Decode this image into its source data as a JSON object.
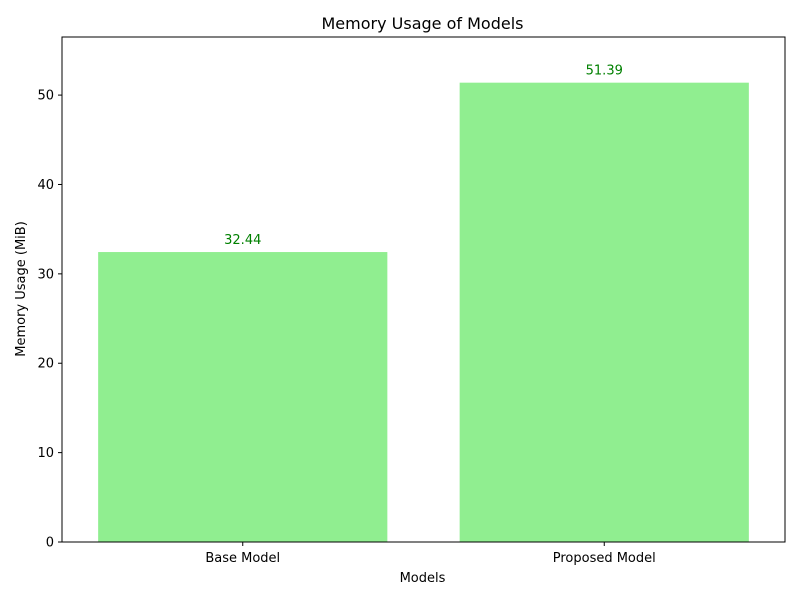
{
  "chart_data": {
    "type": "bar",
    "title": "Memory Usage of Models",
    "xlabel": "Models",
    "ylabel": "Memory Usage (MiB)",
    "categories": [
      "Base Model",
      "Proposed Model"
    ],
    "values": [
      32.44,
      51.39
    ],
    "data_labels": [
      "32.44",
      "51.39"
    ],
    "ylim": [
      0,
      56.5
    ],
    "yticks": [
      0,
      10,
      20,
      30,
      40,
      50
    ],
    "ytick_labels": [
      "0",
      "10",
      "20",
      "30",
      "40",
      "50"
    ],
    "grid": false,
    "legend": "none",
    "bar_color": "#90ee90",
    "label_color": "#008000"
  }
}
